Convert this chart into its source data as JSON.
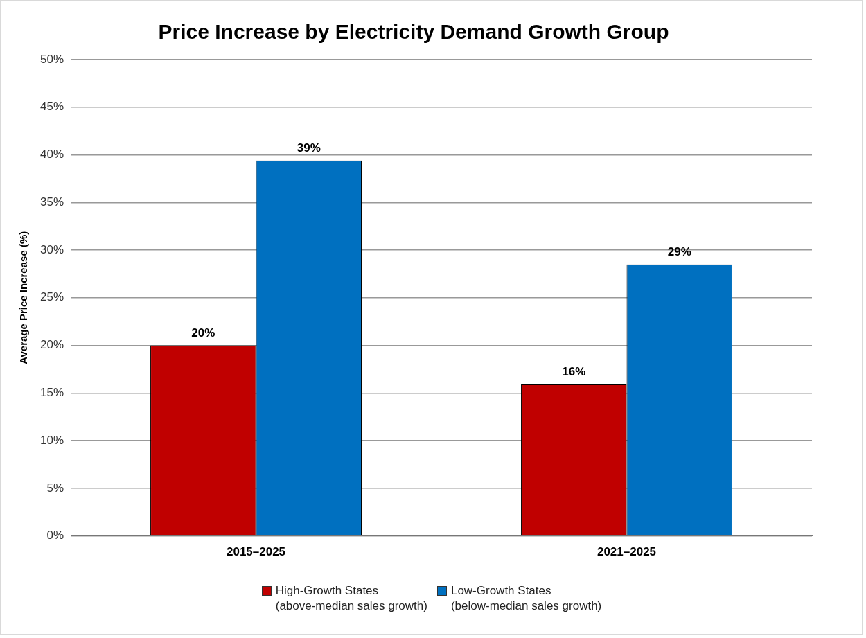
{
  "chart_data": {
    "type": "bar",
    "title": "Price Increase by Electricity Demand Growth Group",
    "ylabel": "Average Price Increase (%)",
    "categories": [
      "2015–2025",
      "2021–2025"
    ],
    "series": [
      {
        "name": "High-Growth States\n(above-median sales growth)",
        "color": "#c00000",
        "values": [
          20,
          15.9
        ],
        "value_labels": [
          "20%",
          "16%"
        ]
      },
      {
        "name": "Low-Growth States\n(below-median sales growth)",
        "color": "#0070c0",
        "values": [
          39.4,
          28.5
        ],
        "value_labels": [
          "39%",
          "29%"
        ]
      }
    ],
    "ylim": [
      0,
      50
    ],
    "yticks": [
      {
        "value": 0,
        "label": "0%"
      },
      {
        "value": 5,
        "label": "5%"
      },
      {
        "value": 10,
        "label": "10%"
      },
      {
        "value": 15,
        "label": "15%"
      },
      {
        "value": 20,
        "label": "20%"
      },
      {
        "value": 25,
        "label": "25%"
      },
      {
        "value": 30,
        "label": "30%"
      },
      {
        "value": 35,
        "label": "35%"
      },
      {
        "value": 40,
        "label": "40%"
      },
      {
        "value": 45,
        "label": "45%"
      },
      {
        "value": 50,
        "label": "50%"
      }
    ],
    "grid": "y",
    "legend": "bottom"
  }
}
